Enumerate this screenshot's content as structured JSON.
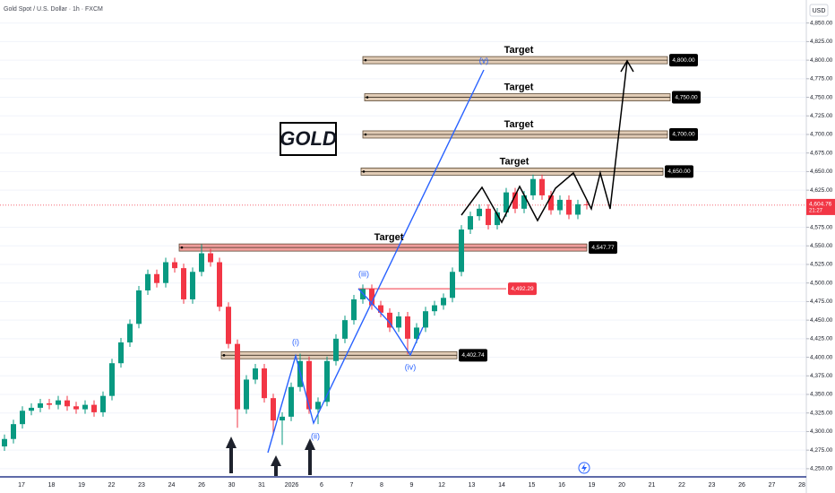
{
  "chart_data": {
    "type": "candlestick",
    "title": "Gold Spot / U.S. Dollar · 1h · FXCM",
    "y_axis_label": "USD",
    "logo": "GOLD",
    "categories": [
      "17",
      "18",
      "19",
      "22",
      "23",
      "24",
      "26",
      "30",
      "31",
      "2026",
      "6",
      "7",
      "8",
      "9",
      "12",
      "13",
      "14",
      "15",
      "16",
      "19",
      "20",
      "21",
      "22",
      "23",
      "26",
      "27",
      "28"
    ],
    "candles": {
      "open": [
        4280,
        4290,
        4310,
        4328,
        4332,
        4338,
        4336,
        4342,
        4334,
        4330,
        4336,
        4326,
        4348,
        4392,
        4420,
        4445,
        4490,
        4512,
        4500,
        4528,
        4520,
        4478,
        4515,
        4540,
        4528,
        4468,
        4418,
        4330,
        4370,
        4385,
        4345,
        4315,
        4320,
        4360,
        4395,
        4330,
        4340,
        4395,
        4425,
        4450,
        4478,
        4492,
        4470,
        4460,
        4440,
        4455,
        4425,
        4440,
        4462,
        4470,
        4480,
        4515,
        4572,
        4590,
        4600,
        4578,
        4595,
        4622,
        4600,
        4618,
        4640,
        4618,
        4598,
        4612,
        4592,
        4606
      ],
      "high": [
        4296,
        4316,
        4334,
        4338,
        4344,
        4344,
        4348,
        4348,
        4340,
        4342,
        4342,
        4354,
        4398,
        4426,
        4451,
        4496,
        4518,
        4518,
        4534,
        4534,
        4526,
        4521,
        4552,
        4546,
        4534,
        4474,
        4424,
        4376,
        4391,
        4391,
        4351,
        4326,
        4366,
        4405,
        4401,
        4346,
        4401,
        4431,
        4456,
        4484,
        4498,
        4498,
        4476,
        4466,
        4461,
        4461,
        4446,
        4468,
        4476,
        4486,
        4521,
        4578,
        4596,
        4606,
        4606,
        4601,
        4628,
        4628,
        4624,
        4646,
        4646,
        4624,
        4618,
        4618,
        4612,
        4612
      ],
      "low": [
        4274,
        4284,
        4304,
        4322,
        4326,
        4330,
        4330,
        4328,
        4324,
        4324,
        4320,
        4320,
        4342,
        4386,
        4414,
        4439,
        4484,
        4494,
        4494,
        4514,
        4472,
        4472,
        4509,
        4522,
        4462,
        4412,
        4305,
        4324,
        4364,
        4339,
        4295,
        4282,
        4314,
        4354,
        4324,
        4310,
        4334,
        4389,
        4419,
        4444,
        4472,
        4464,
        4454,
        4434,
        4434,
        4404,
        4419,
        4434,
        4456,
        4464,
        4474,
        4509,
        4566,
        4584,
        4572,
        4572,
        4589,
        4594,
        4594,
        4612,
        4612,
        4592,
        4592,
        4586,
        4586,
        4599
      ],
      "close": [
        4290,
        4310,
        4328,
        4332,
        4338,
        4336,
        4342,
        4334,
        4330,
        4336,
        4326,
        4348,
        4392,
        4420,
        4445,
        4490,
        4512,
        4500,
        4528,
        4520,
        4478,
        4515,
        4540,
        4528,
        4468,
        4418,
        4330,
        4370,
        4385,
        4345,
        4315,
        4320,
        4360,
        4395,
        4330,
        4340,
        4395,
        4425,
        4450,
        4478,
        4492,
        4470,
        4460,
        4440,
        4455,
        4425,
        4440,
        4462,
        4470,
        4480,
        4515,
        4572,
        4590,
        4600,
        4578,
        4595,
        4622,
        4600,
        4618,
        4640,
        4618,
        4598,
        4612,
        4592,
        4606,
        4605
      ]
    },
    "up_color": "#089981",
    "down_color": "#f23645",
    "ylim": [
      4239,
      4881
    ],
    "yticks": [
      {
        "value": 4250,
        "label": "4,250.00"
      },
      {
        "value": 4275,
        "label": "4,275.00"
      },
      {
        "value": 4300,
        "label": "4,300.00"
      },
      {
        "value": 4325,
        "label": "4,325.00"
      },
      {
        "value": 4350,
        "label": "4,350.00"
      },
      {
        "value": 4375,
        "label": "4,375.00"
      },
      {
        "value": 4400,
        "label": "4,400.00"
      },
      {
        "value": 4425,
        "label": "4,425.00"
      },
      {
        "value": 4450,
        "label": "4,450.00"
      },
      {
        "value": 4475,
        "label": "4,475.00"
      },
      {
        "value": 4500,
        "label": "4,500.00"
      },
      {
        "value": 4525,
        "label": "4,525.00"
      },
      {
        "value": 4550,
        "label": "4,550.00"
      },
      {
        "value": 4575,
        "label": "4,575.00"
      },
      {
        "value": 4625,
        "label": "4,625.00"
      },
      {
        "value": 4650,
        "label": "4,650.00"
      },
      {
        "value": 4675,
        "label": "4,675.00"
      },
      {
        "value": 4700,
        "label": "4,700.00"
      },
      {
        "value": 4725,
        "label": "4,725.00"
      },
      {
        "value": 4750,
        "label": "4,750.00"
      },
      {
        "value": 4775,
        "label": "4,775.00"
      },
      {
        "value": 4800,
        "label": "4,800.00"
      },
      {
        "value": 4825,
        "label": "4,825.00"
      },
      {
        "value": 4850,
        "label": "4,850.00"
      }
    ],
    "grid": true,
    "last_price": {
      "value": 4604.76,
      "label": "4,604.76"
    },
    "countdown": "21:27",
    "levels": [
      {
        "value": 4800,
        "label": "4,800.00",
        "note": "Target",
        "style": "zone",
        "color": "#c8a27a"
      },
      {
        "value": 4750,
        "label": "4,750.00",
        "note": "Target",
        "style": "zone",
        "color": "#c8a27a"
      },
      {
        "value": 4700,
        "label": "4,700.00",
        "note": "Target",
        "style": "zone",
        "color": "#c8a27a"
      },
      {
        "value": 4650,
        "label": "4,650.00",
        "note": "Target",
        "style": "zone",
        "color": "#c8a27a"
      },
      {
        "value": 4547.77,
        "label": "4,547.77",
        "note": "Target",
        "style": "zone",
        "color": "#e8504a"
      },
      {
        "value": 4492.29,
        "label": "4,492.29",
        "style": "line",
        "color": "#f23645"
      },
      {
        "value": 4402.74,
        "label": "4,402.74",
        "style": "zone",
        "color": "#c8a27a"
      }
    ],
    "waves": [
      "(i)",
      "(ii)",
      "(iii)",
      "(iv)",
      "(v)"
    ]
  }
}
